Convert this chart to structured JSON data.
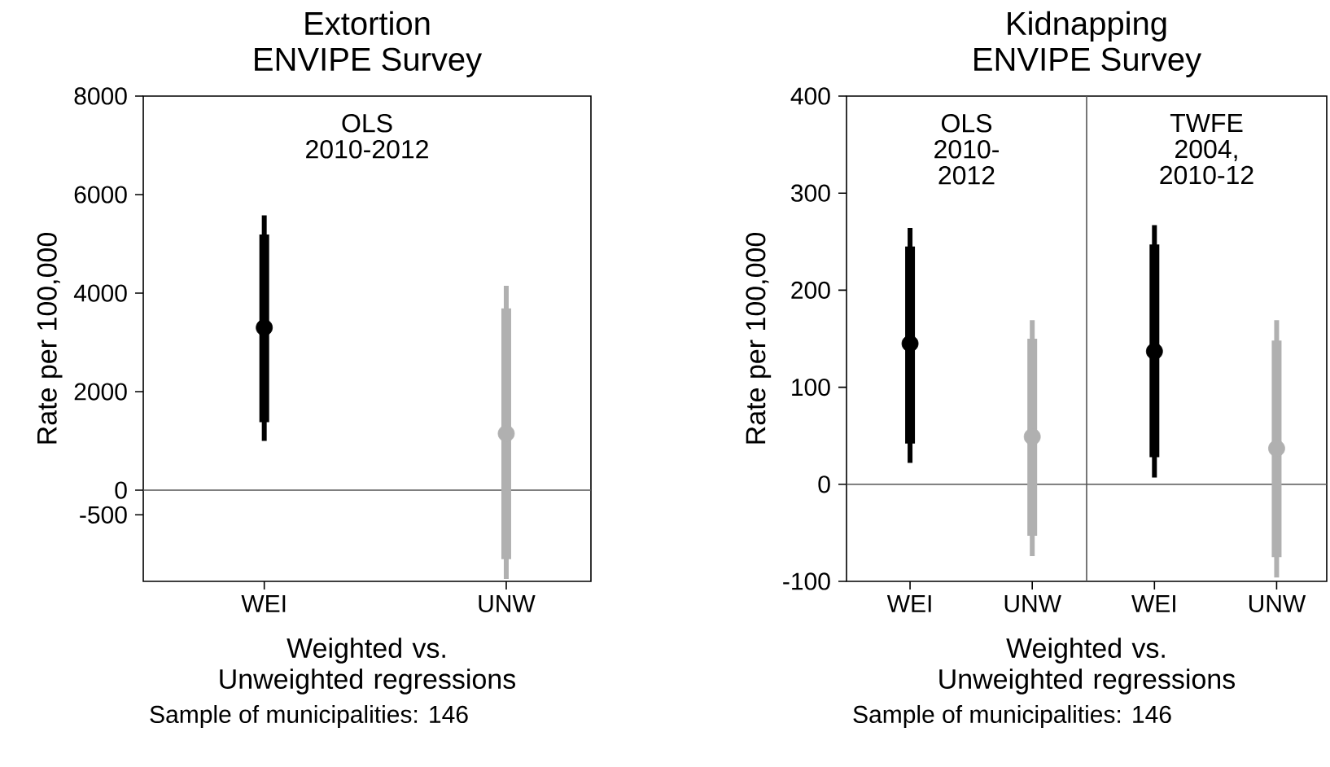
{
  "chart_data": [
    {
      "type": "box",
      "title": "Extortion",
      "subtitle": "ENVIPE Survey",
      "ylabel": "Rate per 100,000",
      "xlabel": "Weighted vs. Unweighted regressions",
      "categories": [
        "WEI",
        "UNW"
      ],
      "series": [
        {
          "color": "#000000",
          "boxes": [
            {
              "low": 1000,
              "q1": 1380,
              "median": 3300,
              "q3": 5190,
              "high": 5580
            },
            null
          ]
        },
        {
          "color": "#b0b0b0",
          "boxes": [
            null,
            {
              "low": -1800,
              "q1": -1400,
              "median": 1150,
              "q3": 3690,
              "high": 4150
            }
          ]
        }
      ],
      "ylim": [
        -1850,
        8000
      ],
      "yticks": [
        -500,
        0,
        2000,
        4000,
        6000,
        8000
      ],
      "ref_lines": [
        {
          "axis": "y",
          "value": 0,
          "color": "#555555"
        }
      ],
      "annotations": [
        "OLS 2010-2012",
        "Sample of municipalities: 146"
      ]
    },
    {
      "type": "box",
      "title": "Kidnapping",
      "subtitle": "ENVIPE Survey",
      "ylabel": "Rate per 100,000",
      "xlabel": "Weighted vs. Unweighted regressions",
      "categories": [
        "WEI",
        "UNW",
        "WEI",
        "UNW"
      ],
      "series": [
        {
          "color": "#000000",
          "boxes": [
            {
              "low": 22,
              "q1": 42,
              "median": 145,
              "q3": 245,
              "high": 264
            },
            null,
            {
              "low": 7,
              "q1": 28,
              "median": 137,
              "q3": 247,
              "high": 267
            },
            null
          ]
        },
        {
          "color": "#b0b0b0",
          "boxes": [
            null,
            {
              "low": -74,
              "q1": -53,
              "median": 49,
              "q3": 150,
              "high": 169
            },
            null,
            {
              "low": -96,
              "q1": -75,
              "median": 37,
              "q3": 148,
              "high": 169
            }
          ]
        }
      ],
      "ylim": [
        -100,
        400
      ],
      "yticks": [
        -100,
        0,
        100,
        200,
        300,
        400
      ],
      "ref_lines": [
        {
          "axis": "y",
          "value": 0,
          "color": "#555555"
        }
      ],
      "annotations": [
        "OLS 2010-2012",
        "TWFE 2004, 2010-12",
        "Sample of municipalities: 146"
      ]
    }
  ]
}
